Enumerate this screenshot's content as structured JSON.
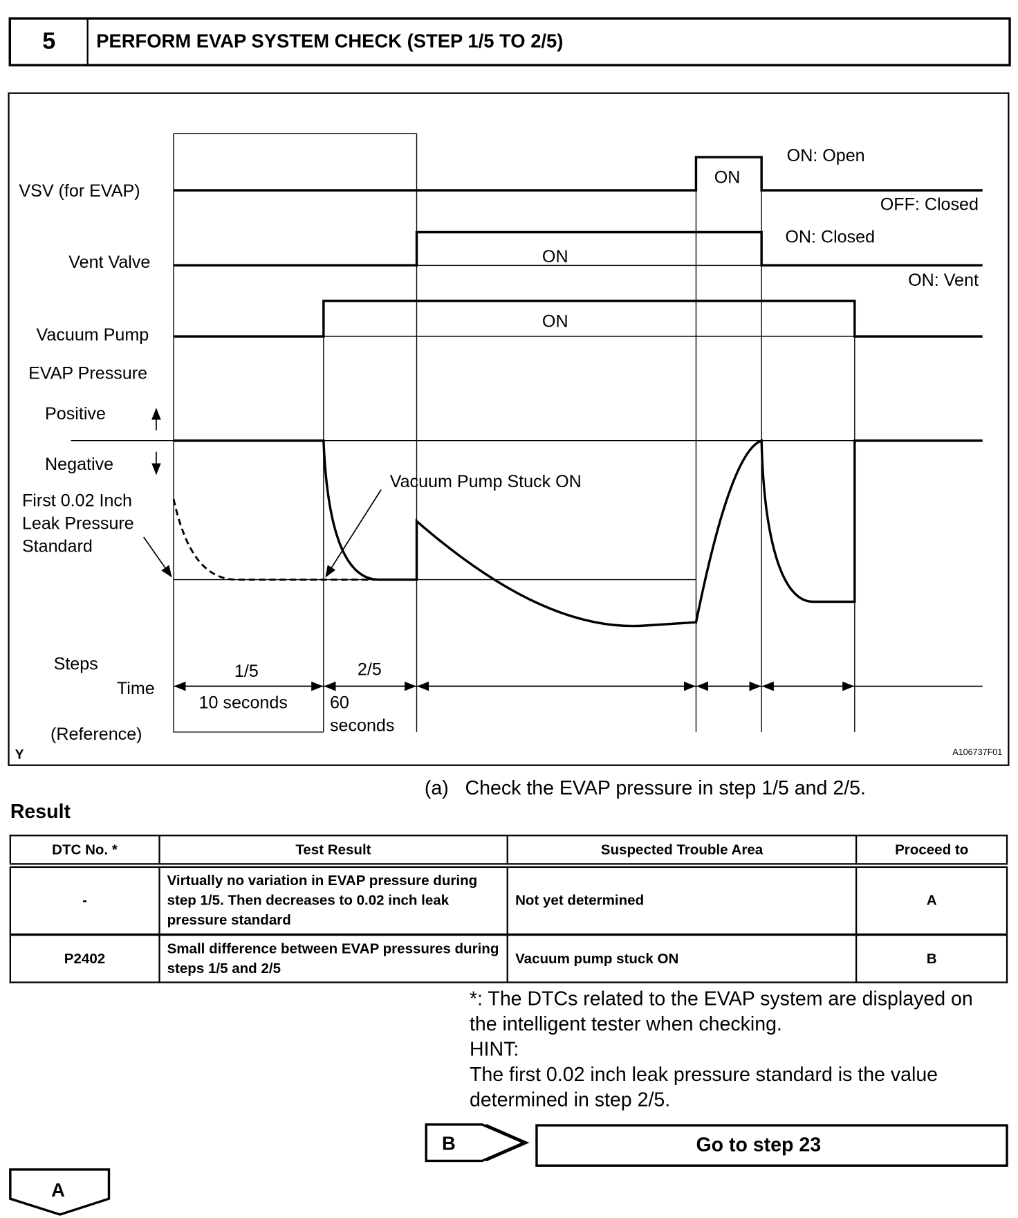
{
  "header": {
    "step_number": "5",
    "title": "PERFORM EVAP SYSTEM CHECK (STEP 1/5 TO 2/5)"
  },
  "diagram": {
    "signals": {
      "vsv": "VSV (for EVAP)",
      "vent": "Vent Valve",
      "pump": "Vacuum Pump",
      "pressure": "EVAP Pressure",
      "positive": "Positive",
      "negative": "Negative",
      "standard1": "First 0.02 Inch",
      "standard2": "Leak Pressure",
      "standard3": "Standard"
    },
    "state_labels": {
      "vsv_on": "ON",
      "vent_on": "ON",
      "pump_on": "ON",
      "on_open": "ON: Open",
      "off_closed": "OFF: Closed",
      "on_closed": "ON: Closed",
      "on_vent": "ON: Vent"
    },
    "annotation": "Vacuum Pump Stuck ON",
    "steps_label": "Steps",
    "time_label": "Time",
    "reference_label": "(Reference)",
    "step1": "1/5",
    "step2": "2/5",
    "time1": "10 seconds",
    "time2a": "60",
    "time2b": "seconds",
    "corner_mark": "Y",
    "figure_id": "A106737F01"
  },
  "instruction": "(a)   Check the EVAP pressure in step 1/5 and 2/5.",
  "result_heading": "Result",
  "table": {
    "headers": [
      "DTC No. *",
      "Test Result",
      "Suspected Trouble Area",
      "Proceed to"
    ],
    "rows": [
      [
        "-",
        "Virtually no variation in EVAP pressure during step 1/5. Then decreases to 0.02 inch leak pressure standard",
        "Not yet determined",
        "A"
      ],
      [
        "P2402",
        "Small difference between EVAP pressures during steps 1/5 and 2/5",
        "Vacuum pump stuck ON",
        "B"
      ]
    ]
  },
  "notes": {
    "footnote": "*: The DTCs related to the EVAP system are displayed on the intelligent tester when checking.",
    "hint_label": "HINT:",
    "hint": "The first 0.02 inch leak pressure standard is the value determined in step 2/5."
  },
  "nav": {
    "b_label": "B",
    "b_action": "Go to step 23",
    "a_label": "A"
  }
}
